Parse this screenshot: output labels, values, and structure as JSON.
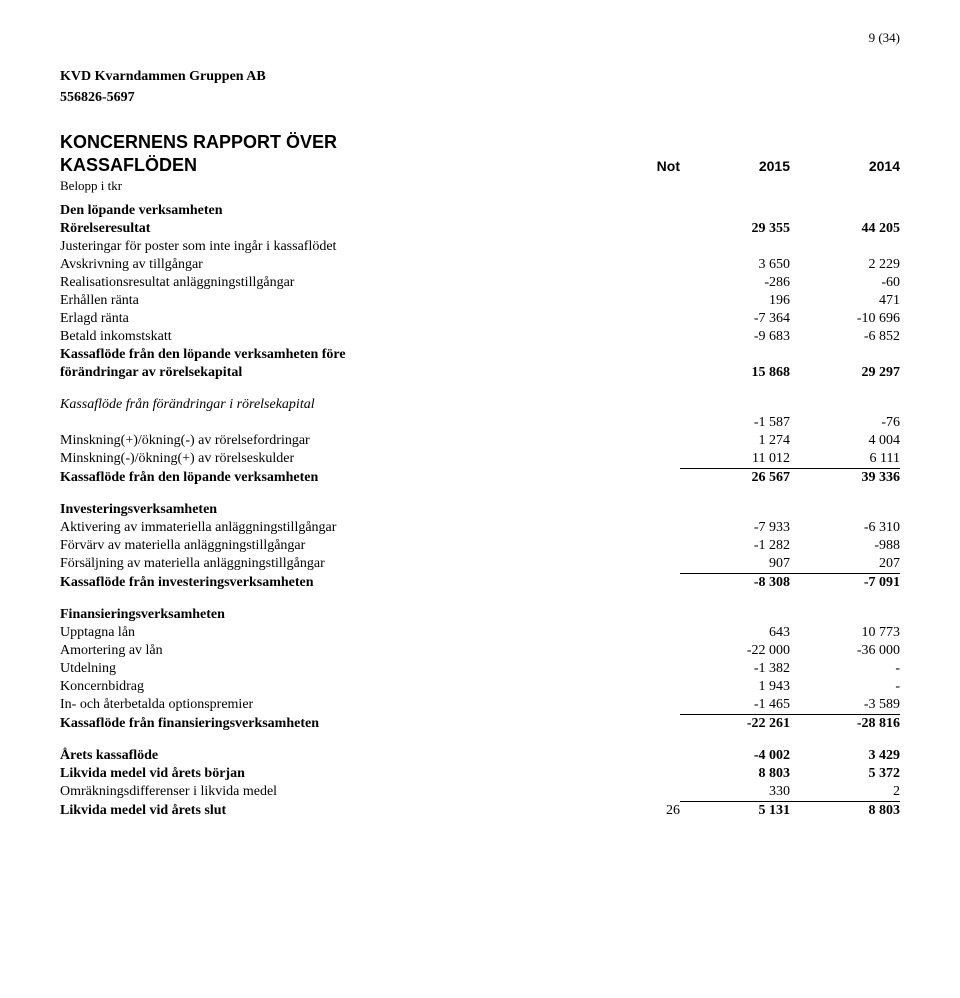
{
  "page_number": "9 (34)",
  "company": {
    "name": "KVD Kvarndammen Gruppen AB",
    "org_no": "556826-5697"
  },
  "title1": "KONCERNENS RAPPORT ÖVER",
  "title2": "KASSAFLÖDEN",
  "col_note": "Not",
  "col_y1": "2015",
  "col_y2": "2014",
  "subtitle": "Belopp i tkr",
  "s1": {
    "header": "Den löpande verksamheten",
    "rows": [
      {
        "label": "Rörelseresultat",
        "v1": "29 355",
        "v2": "44 205",
        "bold": true
      },
      {
        "label": "Justeringar för poster som inte ingår i kassaflödet",
        "v1": "",
        "v2": ""
      },
      {
        "label": "Avskrivning av tillgångar",
        "v1": "3 650",
        "v2": "2 229"
      },
      {
        "label": "Realisationsresultat anläggningstillgångar",
        "v1": "-286",
        "v2": "-60"
      },
      {
        "label": "Erhållen ränta",
        "v1": "196",
        "v2": "471"
      },
      {
        "label": "Erlagd ränta",
        "v1": "-7 364",
        "v2": "-10 696"
      },
      {
        "label": "Betald inkomstskatt",
        "v1": "-9 683",
        "v2": "-6 852"
      }
    ],
    "subtotal1": "Kassaflöde från den löpande verksamheten före",
    "subtotal2": "förändringar av rörelsekapital",
    "sv1": "15 868",
    "sv2": "29 297"
  },
  "s2": {
    "header": "Kassaflöde från förändringar i rörelsekapital",
    "rows": [
      {
        "label": "",
        "v1": "-1 587",
        "v2": "-76"
      },
      {
        "label": "Minskning(+)/ökning(-) av rörelsefordringar",
        "v1": "1 274",
        "v2": "4 004"
      },
      {
        "label": "Minskning(-)/ökning(+) av rörelseskulder",
        "v1": "11 012",
        "v2": "6 111",
        "underline": true
      }
    ],
    "subtotal": "Kassaflöde från den löpande verksamheten",
    "sv1": "26 567",
    "sv2": "39 336"
  },
  "s3": {
    "header": "Investeringsverksamheten",
    "rows": [
      {
        "label": "Aktivering av immateriella anläggningstillgångar",
        "v1": "-7 933",
        "v2": "-6 310"
      },
      {
        "label": "Förvärv av materiella anläggningstillgångar",
        "v1": "-1 282",
        "v2": "-988"
      },
      {
        "label": "Försäljning av materiella anläggningstillgångar",
        "v1": "907",
        "v2": "207",
        "underline": true
      }
    ],
    "subtotal": "Kassaflöde från investeringsverksamheten",
    "sv1": "-8 308",
    "sv2": "-7 091"
  },
  "s4": {
    "header": "Finansieringsverksamheten",
    "rows": [
      {
        "label": "Upptagna lån",
        "v1": "643",
        "v2": "10 773"
      },
      {
        "label": "Amortering av lån",
        "v1": "-22 000",
        "v2": "-36 000"
      },
      {
        "label": "Utdelning",
        "v1": "-1 382",
        "v2": "-"
      },
      {
        "label": "Koncernbidrag",
        "v1": "1 943",
        "v2": "-"
      },
      {
        "label": "In- och återbetalda optionspremier",
        "v1": "-1 465",
        "v2": "-3 589",
        "underline": true
      }
    ],
    "subtotal": "Kassaflöde från finansieringsverksamheten",
    "sv1": "-22 261",
    "sv2": "-28 816"
  },
  "s5": {
    "rows": [
      {
        "label": "Årets kassaflöde",
        "v1": "-4 002",
        "v2": "3 429",
        "bold": true
      },
      {
        "label": "Likvida medel vid årets början",
        "v1": "8 803",
        "v2": "5 372",
        "bold": true
      },
      {
        "label": "Omräkningsdifferenser i likvida medel",
        "v1": "330",
        "v2": "2",
        "underline": true
      },
      {
        "label": "Likvida medel vid årets slut",
        "note": "26",
        "v1": "5 131",
        "v2": "8 803",
        "bold": true
      }
    ]
  }
}
